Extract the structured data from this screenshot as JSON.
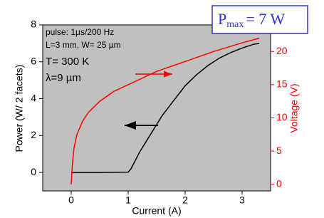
{
  "chart_data": {
    "type": "line",
    "xlabel": "Current (A)",
    "ylabel": "Power (W/ 2 facets)",
    "y2label": "Voltage (V)",
    "xlim": [
      -0.5,
      3.5
    ],
    "xticks": [
      0,
      1,
      2,
      3
    ],
    "ylim": [
      -1,
      8
    ],
    "yticks": [
      0,
      2,
      4,
      6,
      8
    ],
    "y2lim": [
      -1,
      24
    ],
    "y2ticks": [
      0,
      5,
      10,
      15,
      20
    ],
    "background": "#c0c0c0",
    "y2color": "#ff0000",
    "annotations": [
      "pulse: 1µs/200 Hz",
      "L=3 mm, W= 25 µm",
      "T= 300 K",
      "λ=9 µm"
    ],
    "pmax": {
      "main": "P",
      "sub": "max",
      "rest": "= 7 W"
    },
    "series": [
      {
        "color": "#000000",
        "x": [
          0,
          0.5,
          1.0,
          1.05,
          1.2,
          1.4,
          1.6,
          1.8,
          2.0,
          2.2,
          2.4,
          2.6,
          2.8,
          3.0,
          3.2,
          3.3
        ],
        "values": [
          0,
          0.0,
          0.02,
          0.2,
          1.1,
          2.1,
          3.1,
          3.9,
          4.7,
          5.3,
          5.8,
          6.2,
          6.5,
          6.75,
          6.95,
          7.0
        ]
      },
      {
        "color": "#ff0000",
        "axis": "y2",
        "x": [
          0,
          0.02,
          0.05,
          0.1,
          0.2,
          0.3,
          0.5,
          0.75,
          1.0,
          1.25,
          1.5,
          2.0,
          2.5,
          3.0,
          3.3
        ],
        "values": [
          0,
          3,
          5.5,
          7.5,
          9.5,
          10.8,
          12.5,
          14,
          15,
          16,
          17,
          18.5,
          20,
          21.3,
          22
        ]
      }
    ]
  }
}
